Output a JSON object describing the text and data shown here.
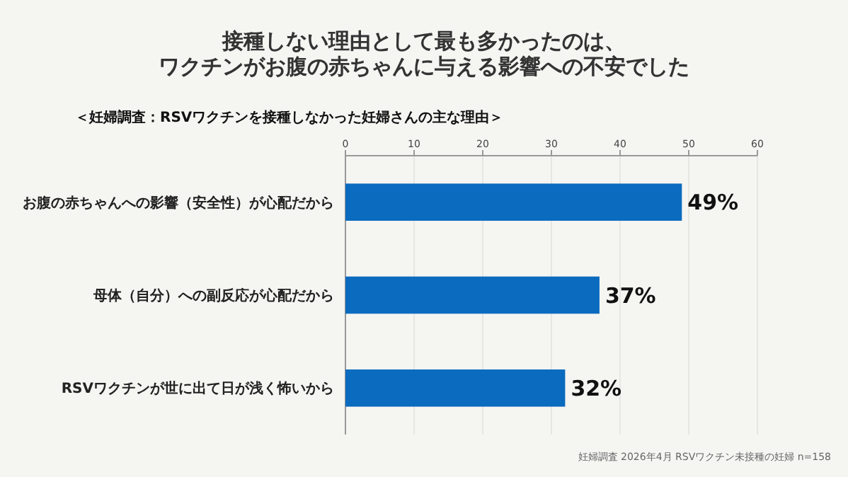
{
  "chart_data": {
    "type": "bar",
    "orientation": "horizontal",
    "title": "接種しない理由として最も多かったのは、ワクチンがお腹の赤ちゃんに与える影響への不安でした",
    "subtitle": "＜妊婦調査：RSVワクチンを接種しなかった妊婦さんの主な理由＞",
    "categories": [
      "お腹の赤ちゃんへの影響（安全性）が心配だから",
      "母体（自分）への副反応が心配だから",
      "RSVワクチンが世に出て日が浅く怖いから"
    ],
    "values": [
      49,
      37,
      32
    ],
    "value_labels": [
      "49%",
      "37%",
      "32%"
    ],
    "color": "#0a6bbf",
    "xlim": [
      0,
      60
    ],
    "xticks": [
      0,
      10,
      20,
      30,
      40,
      50,
      60
    ],
    "grid": "x",
    "annotations": [
      "妊婦調査 2026年4月 RSVワクチン未接種の妊婦 n=158"
    ]
  }
}
